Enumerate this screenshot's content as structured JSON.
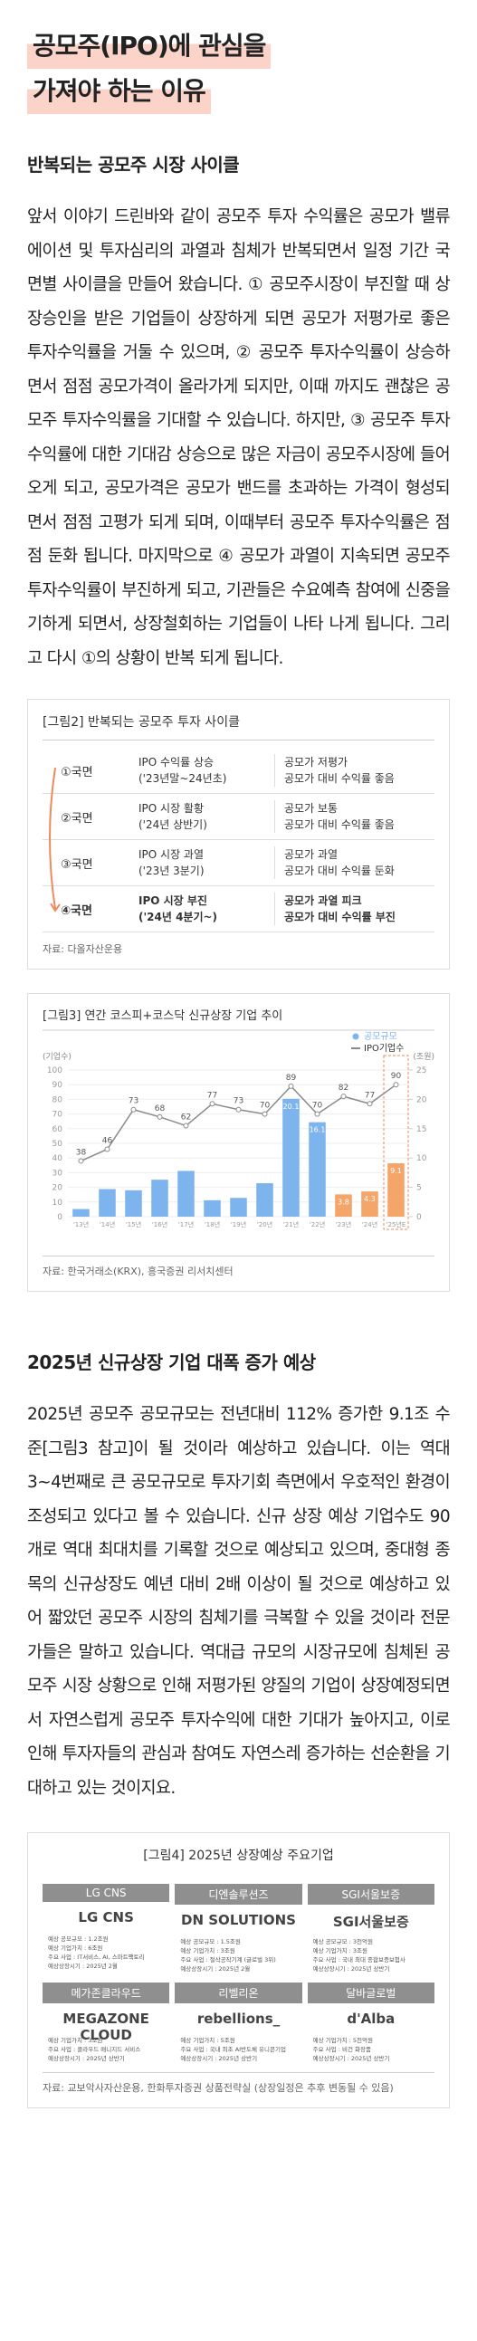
{
  "title_lines": [
    "공모주(IPO)에 관심을",
    "가져야 하는 이유"
  ],
  "sections": [
    {
      "heading": "반복되는 공모주 시장 사이클",
      "body": "앞서 이야기 드린바와 같이 공모주 투자 수익률은 공모가 밸류에이션 및 투자심리의 과열과 침체가 반복되면서 일정 기간 국면별 사이클을 만들어 왔습니다. ① 공모주시장이 부진할 때 상장승인을 받은 기업들이 상장하게 되면 공모가 저평가로 좋은 투자수익률을 거둘 수 있으며, ② 공모주 투자수익률이 상승하면서 점점 공모가격이 올라가게 되지만, 이때 까지도 괜찮은 공모주 투자수익률을 기대할 수 있습니다. 하지만, ③ 공모주 투자수익률에 대한 기대감 상승으로 많은 자금이 공모주시장에 들어오게 되고, 공모가격은 공모가 밴드를 초과하는 가격이 형성되면서 점점 고평가 되게 되며, 이때부터 공모주 투자수익률은 점점 둔화 됩니다. 마지막으로 ④ 공모가 과열이 지속되면 공모주 투자수익률이 부진하게 되고, 기관들은 수요예측 참여에 신중을 기하게 되면서, 상장철회하는 기업들이 나타 나게 됩니다. 그리고 다시 ①의 상황이 반복 되게 됩니다."
    },
    {
      "heading": "2025년 신규상장 기업 대폭 증가 예상",
      "body": "2025년 공모주 공모규모는 전년대비 112% 증가한 9.1조 수준[그림3 참고]이 될 것이라 예상하고 있습니다. 이는 역대 3~4번째로 큰 공모규모로 투자기회 측면에서 우호적인 환경이 조성되고 있다고 볼 수 있습니다. 신규 상장 예상 기업수도 90개로 역대 최대치를 기록할 것으로 예상되고 있으며, 중대형 종목의 신규상장도 예년 대비 2배 이상이 될 것으로 예상하고 있어 짧았던 공모주 시장의 침체기를 극복할 수 있을 것이라 전문가들은 말하고 있습니다. 역대급 규모의 시장규모에 침체된 공모주 시장 상황으로 인해 저평가된 양질의 기업이 상장예정되면서 자연스럽게 공모주 투자수익에 대한 기대가 높아지고, 이로 인해 투자자들의 관심과 참여도 자연스레 증가하는 선순환을 기대하고 있는 것이지요."
    }
  ],
  "figure2": {
    "title": "[그림2] 반복되는 공모주 투자 사이클",
    "rows": [
      [
        "①국면",
        "IPO 수익률 상승",
        "('23년말~24년초)",
        "공모가 저평가",
        "공모가 대비 수익률 좋음"
      ],
      [
        "②국면",
        "IPO 시장 활황",
        "('24년 상반기)",
        "공모가 보통",
        "공모가 대비 수익률 좋음"
      ],
      [
        "③국면",
        "IPO 시장 과열",
        "('23년 3분기)",
        "공모가 과열",
        "공모가 대비 수익률 둔화"
      ],
      [
        "④국면",
        "IPO 시장 부진",
        "('24년 4분기~)",
        "공모가 과열 피크",
        "공모가 대비 수익률 부진"
      ]
    ],
    "source": "자료: 다올자산운용"
  },
  "chart_data": {
    "type": "bar",
    "title": "[그림3] 연간 코스피+코스닥 신규상장 기업 추이",
    "y_label": "(기업수)",
    "y2_label": "(조원)",
    "categories": [
      "'13년",
      "'14년",
      "'15년",
      "'16년",
      "'17년",
      "'18년",
      "'19년",
      "'20년",
      "'21년",
      "'22년",
      "'23년",
      "'24년",
      "'25년E"
    ],
    "ylim": [
      0,
      100
    ],
    "yticks": [
      0,
      10,
      20,
      30,
      40,
      50,
      60,
      70,
      80,
      90,
      100
    ],
    "y2lim": [
      0,
      25
    ],
    "y2ticks": [
      0,
      5,
      10,
      15,
      20,
      25
    ],
    "series": [
      {
        "name": "공모규모",
        "type": "bar",
        "axis": "y2",
        "color": "#7db4ee",
        "colors": [
          "#7db4ee",
          "#7db4ee",
          "#7db4ee",
          "#7db4ee",
          "#7db4ee",
          "#7db4ee",
          "#7db4ee",
          "#7db4ee",
          "#7db4ee",
          "#7db4ee",
          "#f4a56a",
          "#f4a56a",
          "#f4a56a"
        ],
        "values": [
          1.3,
          4.7,
          4.5,
          6.3,
          7.8,
          2.8,
          3.2,
          5.7,
          20.1,
          16.1,
          3.8,
          4.3,
          9.1
        ],
        "value_labels": [
          null,
          null,
          null,
          null,
          null,
          null,
          null,
          null,
          "20.1",
          "16.1",
          "3.8",
          "4.3",
          "9.1"
        ]
      },
      {
        "name": "IPO기업수",
        "type": "line",
        "color": "#8a8a8a",
        "values": [
          38,
          46,
          73,
          68,
          62,
          77,
          73,
          70,
          89,
          70,
          82,
          77,
          90
        ]
      }
    ],
    "source": "자료: 한국거래소(KRX), 흥국증권 리서치센터"
  },
  "figure4": {
    "title": "[그림4] 2025년 상장예상 주요기업",
    "companies": [
      {
        "name": "LG CNS",
        "logo": "LG CNS",
        "details": [
          "예상 공모규모 : 1.2조원",
          "예상 기업가치 : 6조원",
          "주요 사업 : IT서비스, AI, 스마트팩토리",
          "예상상장시기 : 2025년 2월"
        ]
      },
      {
        "name": "디엔솔루션즈",
        "logo": "DN SOLUTIONS",
        "details": [
          "예상 공모규모 : 1.5조원",
          "예상 기업가치 : 3조원",
          "주요 사업 : 절삭공작기계 (글로벌 3위)",
          "예상상장시기 : 2025년 2월"
        ]
      },
      {
        "name": "SGI서울보증",
        "logo": "SGI서울보증",
        "details": [
          "예상 공모규모 : 3천억원",
          "예상 기업가치 : 3조원",
          "주요 사업 : 국내 최대 종합보증보험사",
          "예상상장시기 : 2025년 상반기"
        ]
      },
      {
        "name": "메가존클라우드",
        "logo": "MEGAZONE CLOUD",
        "details": [
          "예상 기업가치 : 3조원",
          "주요 사업 : 클라우드 매니지드 서비스",
          "예상상장시기 : 2025년 상반기"
        ]
      },
      {
        "name": "리벨리온",
        "logo": "rebellions_",
        "details": [
          "예상 기업가치 : 5조원",
          "주요 사업 : 국내 최초 AI반도체 유니콘기업",
          "예상상장시기 : 2025년 상반기"
        ]
      },
      {
        "name": "달바글로벌",
        "logo": "d'Alba",
        "details": [
          "예상 기업가치 : 5천억원",
          "주요 사업 : 비건 화장품",
          "예상상장시기 : 2025년 상반기"
        ]
      }
    ],
    "source": "자료: 교보악사자산운용, 한화투자증권 상품전략실 (상장일정은 추후 변동될 수 있음)"
  }
}
